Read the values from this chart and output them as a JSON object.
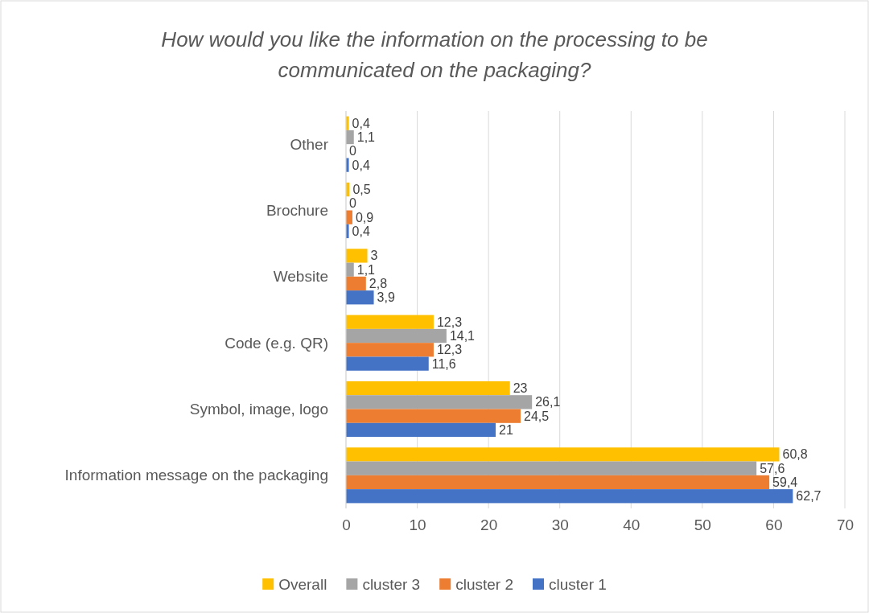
{
  "chart_data": {
    "type": "bar",
    "orientation": "horizontal",
    "title": "How would you like the information on the processing to be communicated on the packaging?",
    "categories": [
      "Other",
      "Brochure",
      "Website",
      "Code (e.g. QR)",
      "Symbol, image, logo",
      "Information message on the packaging"
    ],
    "series": [
      {
        "name": "Overall",
        "color": "#ffc000",
        "values": [
          0.4,
          0.5,
          3,
          12.3,
          23,
          60.8
        ],
        "value_labels": [
          "0,4",
          "0,5",
          "3",
          "12,3",
          "23",
          "60,8"
        ]
      },
      {
        "name": "cluster 3",
        "color": "#a5a5a5",
        "values": [
          1.1,
          0,
          1.1,
          14.1,
          26.1,
          57.6
        ],
        "value_labels": [
          "1,1",
          "0",
          "1,1",
          "14,1",
          "26,1",
          "57,6"
        ]
      },
      {
        "name": "cluster 2",
        "color": "#ed7d31",
        "values": [
          0,
          0.9,
          2.8,
          12.3,
          24.5,
          59.4
        ],
        "value_labels": [
          "0",
          "0,9",
          "2,8",
          "12,3",
          "24,5",
          "59,4"
        ]
      },
      {
        "name": "cluster 1",
        "color": "#4472c4",
        "values": [
          0.4,
          0.4,
          3.9,
          11.6,
          21,
          62.7
        ],
        "value_labels": [
          "0,4",
          "0,4",
          "3,9",
          "11,6",
          "21",
          "62,7"
        ]
      }
    ],
    "xlim": [
      0,
      70
    ],
    "xticks": [
      0,
      10,
      20,
      30,
      40,
      50,
      60,
      70
    ],
    "grid": "x",
    "legend": "bottom"
  }
}
